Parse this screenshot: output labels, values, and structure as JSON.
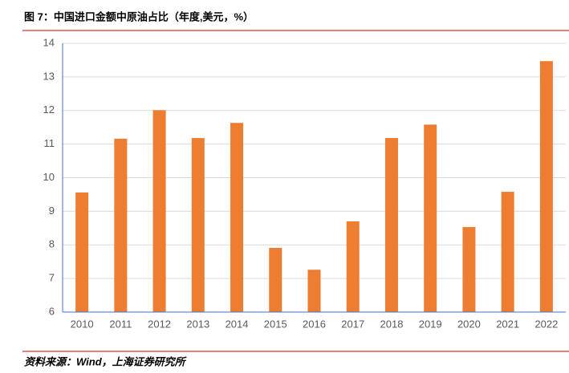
{
  "title": "图 7：中国进口金额中原油占比（年度,美元，%）",
  "source": "资料来源：Wind，上海证券研究所",
  "chart_data": {
    "type": "bar",
    "categories": [
      "2010",
      "2011",
      "2012",
      "2013",
      "2014",
      "2015",
      "2016",
      "2017",
      "2018",
      "2019",
      "2020",
      "2021",
      "2022"
    ],
    "values": [
      9.56,
      11.16,
      12.01,
      11.18,
      11.63,
      7.91,
      7.26,
      8.7,
      11.18,
      11.58,
      8.53,
      9.58,
      13.47
    ],
    "color": "#ed7d31",
    "ylim": [
      6,
      14
    ],
    "yticks": [
      6,
      7,
      8,
      9,
      10,
      11,
      12,
      13,
      14
    ],
    "grid": true
  }
}
